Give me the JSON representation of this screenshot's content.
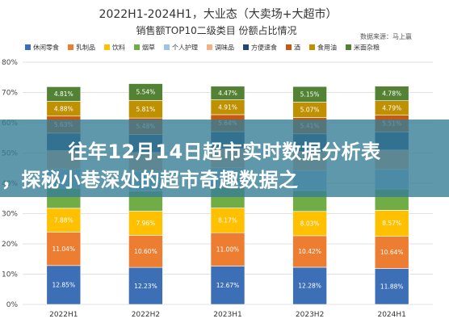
{
  "chart_data": {
    "type": "bar",
    "stacked": true,
    "title": "2022H1-2024H1，大业态（大卖场+大超市）",
    "subtitle": "销售额TOP10二级类目 份额占比情况",
    "source": "数据来源：马上赢",
    "categories": [
      "2022H1",
      "2022H2",
      "2023H1",
      "2023H2",
      "2024H1"
    ],
    "ylim": [
      0,
      80
    ],
    "yticks": [
      "0%",
      "10%",
      "20%",
      "30%",
      "40%",
      "50%",
      "60%",
      "70%",
      "80%"
    ],
    "legend_position": "top",
    "grid": true,
    "series": [
      {
        "name": "休闲零食",
        "color": "#3c6fb6",
        "values": [
          12.85,
          12.23,
          12.67,
          12.28,
          11.88
        ],
        "labels": [
          "12.85%",
          "12.23%",
          "12.67%",
          "12.28%",
          "11.88%"
        ]
      },
      {
        "name": "乳制品",
        "color": "#ed7d31",
        "values": [
          11.04,
          10.6,
          11.0,
          10.42,
          10.64
        ],
        "labels": [
          "11.04%",
          "10.60%",
          "11.00%",
          "10.42%",
          "10.64%"
        ]
      },
      {
        "name": "饮料",
        "color": "#ffc000",
        "values": [
          7.88,
          7.96,
          8.17,
          8.03,
          8.57
        ],
        "labels": [
          "7.88%",
          "7.96%",
          "8.17%",
          "8.03%",
          "8.57%"
        ]
      },
      {
        "name": "烟草",
        "color": "#70ad47",
        "values": [
          6.6,
          6.7,
          6.8,
          6.9,
          7.0
        ],
        "labels": [
          "",
          "",
          "",
          "",
          ""
        ]
      },
      {
        "name": "个人护理",
        "color": "#9dc3e6",
        "values": [
          6.4,
          6.5,
          6.5,
          6.6,
          6.5
        ],
        "labels": [
          "",
          "",
          "",
          "",
          ""
        ]
      },
      {
        "name": "调味品",
        "color": "#f4b183",
        "values": [
          6.0,
          6.2,
          6.3,
          6.2,
          6.4
        ],
        "labels": [
          "",
          "",
          "",
          "",
          ""
        ]
      },
      {
        "name": "方便速食",
        "color": "#264478",
        "values": [
          5.8,
          5.9,
          5.6,
          5.9,
          6.0
        ],
        "labels": [
          "",
          "",
          "",
          "",
          ""
        ]
      },
      {
        "name": "酒",
        "color": "#c55a11",
        "values": [
          5.63,
          5.48,
          5.64,
          5.41,
          5.51
        ],
        "labels": [
          "5.63%",
          "5.48%",
          "5.64%",
          "5.41%",
          "5.51%"
        ]
      },
      {
        "name": "食用油",
        "color": "#bf9000",
        "values": [
          4.88,
          5.81,
          4.91,
          5.07,
          4.79
        ],
        "labels": [
          "4.88%",
          "5.81%",
          "4.91%",
          "5.07%",
          "4.79%"
        ]
      },
      {
        "name": "米面杂粮",
        "color": "#548235",
        "values": [
          4.81,
          5.54,
          4.47,
          5.15,
          4.78
        ],
        "labels": [
          "4.81%",
          "5.54%",
          "4.47%",
          "5.15%",
          "4.78%"
        ]
      }
    ]
  },
  "banner": {
    "line1": "往年12月14日超市实时数据分析表",
    "line2": "，探秘小巷深处的超市奇趣数据之"
  }
}
